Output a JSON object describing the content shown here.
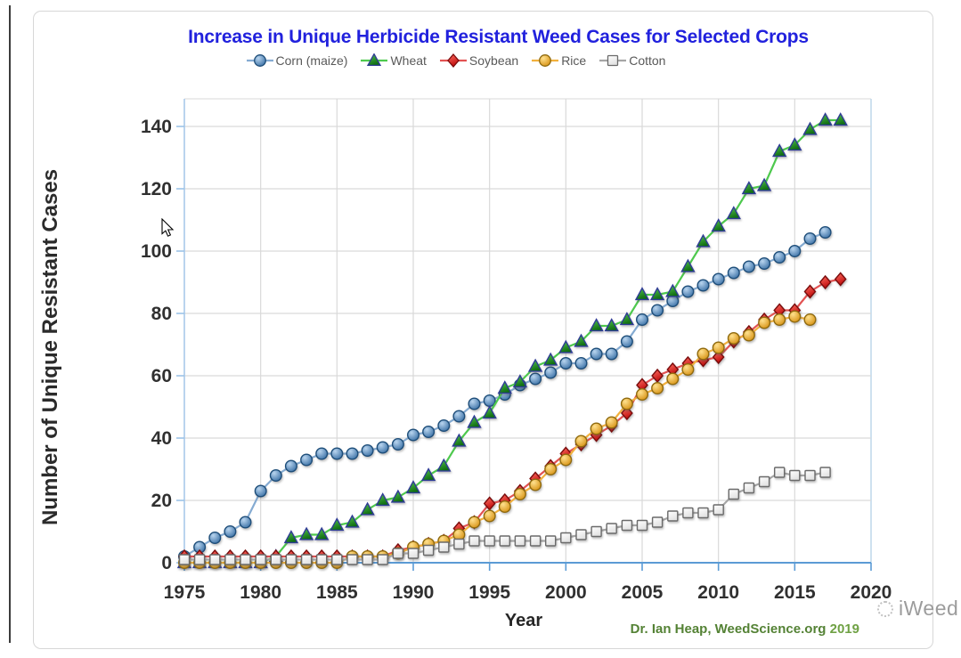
{
  "footer": {
    "attribution": "Dr. Ian Heap, WeedScience.org",
    "attribution_year": "2019",
    "watermark": "iWeed"
  },
  "chart_data": {
    "type": "line",
    "title": "Increase in Unique Herbicide Resistant Weed Cases for Selected Crops",
    "title_color": "#2121dd",
    "xlabel": "Year",
    "ylabel": "Number of Unique Resistant Cases",
    "xlim": [
      1975,
      2020
    ],
    "ylim": [
      0,
      148
    ],
    "x_ticks": [
      1975,
      1980,
      1985,
      1990,
      1995,
      2000,
      2005,
      2010,
      2015,
      2020
    ],
    "y_ticks": [
      0,
      20,
      40,
      60,
      80,
      100,
      120,
      140
    ],
    "grid": true,
    "legend_position": "top-center",
    "axis_color": "#5b9bd5",
    "grid_color": "#d9d9d9",
    "tick_label_color": "#303030",
    "series": [
      {
        "name": "Corn (maize)",
        "marker": "circle",
        "line_color": "#85abd2",
        "marker_fill": [
          "#b9d5ef",
          "#3f74a8"
        ],
        "marker_stroke": "#1f4e79",
        "start_year": 1975,
        "values": [
          2,
          5,
          8,
          10,
          13,
          23,
          28,
          31,
          33,
          35,
          35,
          35,
          36,
          37,
          38,
          41,
          42,
          44,
          47,
          51,
          52,
          54,
          57,
          59,
          61,
          64,
          64,
          67,
          67,
          71,
          78,
          81,
          84,
          87,
          89,
          91,
          93,
          95,
          96,
          98,
          100,
          104,
          106
        ]
      },
      {
        "name": "Wheat",
        "marker": "triangle",
        "line_color": "#4ec94e",
        "marker_fill": [
          "#55c555",
          "#116e11"
        ],
        "marker_stroke": "#2f3a96",
        "start_year": 1975,
        "values": [
          0,
          0,
          0,
          0,
          0,
          0,
          2,
          8,
          9,
          9,
          12,
          13,
          17,
          20,
          21,
          24,
          28,
          31,
          39,
          45,
          48,
          56,
          58,
          63,
          65,
          69,
          71,
          76,
          76,
          78,
          86,
          86,
          87,
          95,
          103,
          108,
          112,
          120,
          121,
          132,
          134,
          139,
          142,
          142
        ]
      },
      {
        "name": "Soybean",
        "marker": "diamond",
        "line_color": "#e25353",
        "marker_fill": [
          "#ff7064",
          "#c00d0d"
        ],
        "marker_stroke": "#7a0c0c",
        "start_year": 1975,
        "values": [
          2,
          2,
          2,
          2,
          2,
          2,
          2,
          2,
          2,
          2,
          2,
          2,
          2,
          2,
          4,
          5,
          6,
          7,
          11,
          13,
          19,
          20,
          23,
          27,
          31,
          35,
          38,
          41,
          44,
          48,
          57,
          60,
          62,
          64,
          65,
          66,
          71,
          74,
          78,
          81,
          81,
          87,
          90,
          91
        ]
      },
      {
        "name": "Rice",
        "marker": "circle",
        "line_color": "#f2b13d",
        "marker_fill": [
          "#ffe18e",
          "#d89417"
        ],
        "marker_stroke": "#8f6a10",
        "start_year": 1975,
        "values": [
          0,
          0,
          0,
          0,
          0,
          0,
          0,
          0,
          0,
          0,
          0,
          2,
          2,
          2,
          3,
          5,
          6,
          7,
          9,
          13,
          15,
          18,
          22,
          25,
          30,
          33,
          39,
          43,
          45,
          51,
          54,
          56,
          59,
          62,
          67,
          69,
          72,
          73,
          77,
          78,
          79,
          78
        ]
      },
      {
        "name": "Cotton",
        "marker": "square",
        "line_color": "#a6a6a6",
        "marker_fill": [
          "#ffffff",
          "#e2e2e2"
        ],
        "marker_stroke": "#6b6b6b",
        "start_year": 1975,
        "values": [
          1,
          1,
          1,
          1,
          1,
          1,
          1,
          1,
          1,
          1,
          1,
          1,
          1,
          1,
          3,
          3,
          4,
          5,
          6,
          7,
          7,
          7,
          7,
          7,
          7,
          8,
          9,
          10,
          11,
          12,
          12,
          13,
          15,
          16,
          16,
          17,
          22,
          24,
          26,
          29,
          28,
          28,
          29
        ]
      }
    ]
  }
}
